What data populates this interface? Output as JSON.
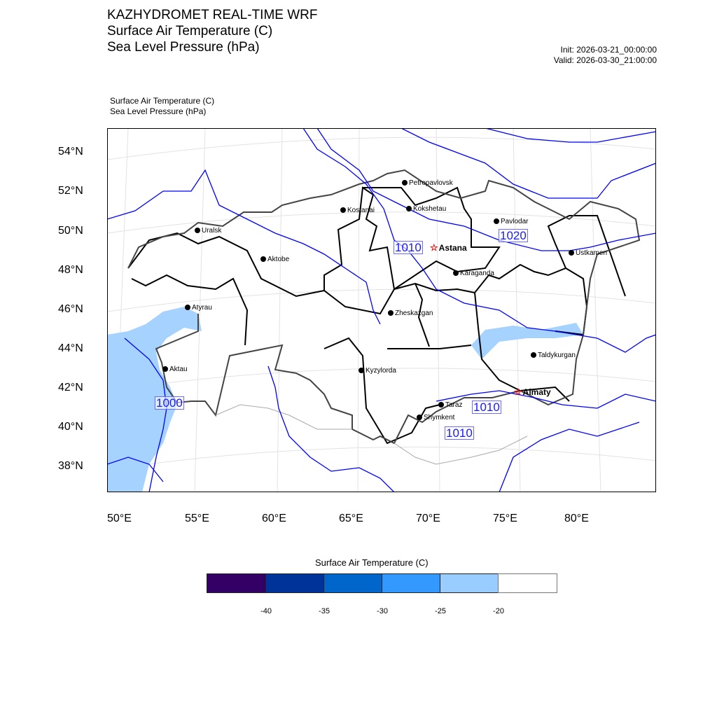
{
  "header": {
    "title": "KAZHYDROMET REAL-TIME WRF",
    "line2": "Surface Air Temperature  (C)",
    "line3": "Sea Level Pressure  (hPa)",
    "init": "Init: 2026-03-21_00:00:00",
    "valid": "Valid: 2026-03-30_21:00:00"
  },
  "subtitle": {
    "line1": "Surface Air Temperature   (C)",
    "line2": "Sea Level Pressure   (hPa)"
  },
  "axes": {
    "lat_ticks": [
      "54°N",
      "52°N",
      "50°N",
      "48°N",
      "46°N",
      "44°N",
      "42°N",
      "40°N",
      "38°N"
    ],
    "lon_ticks": [
      "50°E",
      "55°E",
      "60°E",
      "65°E",
      "70°E",
      "75°E",
      "80°E"
    ]
  },
  "cities": [
    "Petropavlovsk",
    "Kostanai",
    "Kokshetau",
    "Pavlodar",
    "Uralsk",
    "Aktobe",
    "Karaganda",
    "Ustkamen",
    "Atyrau",
    "Zheskazgan",
    "Kyzylorda",
    "Aktau",
    "Taldykurgan",
    "Taraz",
    "Shymkent"
  ],
  "capitals": [
    "Astana",
    "Almaty"
  ],
  "contour_labels": [
    "1010",
    "1020",
    "1000",
    "1010",
    "1010"
  ],
  "colorbar": {
    "title": "Surface Air Temperature (C)",
    "colors": [
      "#330066",
      "#003399",
      "#0066cc",
      "#3399ff",
      "#99ccff",
      "#ffffff"
    ],
    "ticks": [
      "-40",
      "-35",
      "-30",
      "-25",
      "-20"
    ]
  },
  "colors": {
    "isobar": "#0000ff",
    "sea": "#a6d2ff",
    "border": "#000000"
  }
}
